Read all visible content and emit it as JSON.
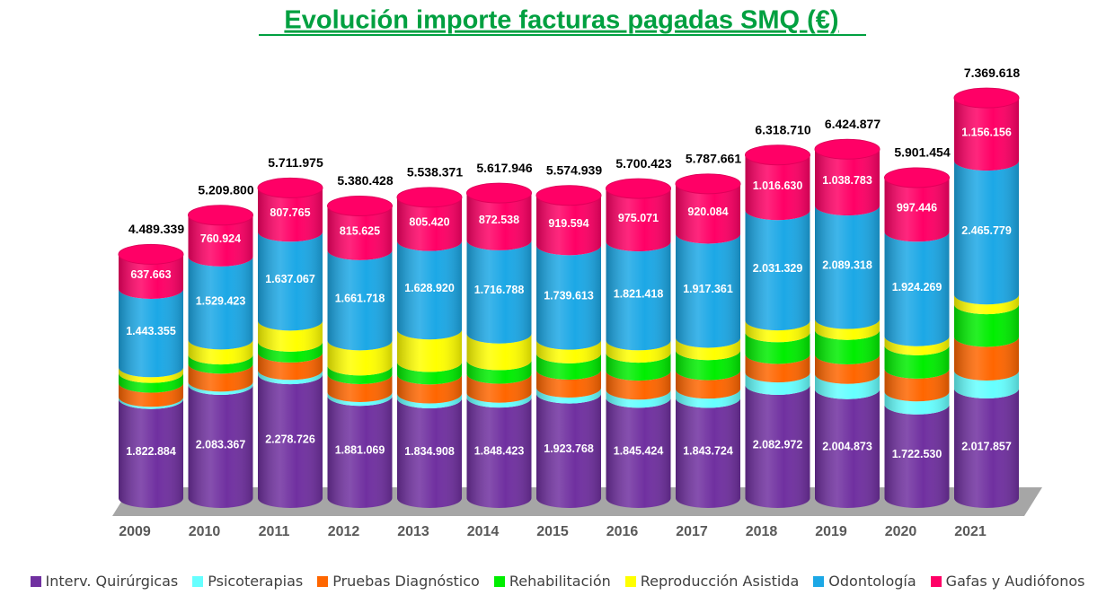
{
  "chart_data": {
    "type": "stacked-cylinder",
    "title": "Evolución importe facturas pagadas SMQ (€)",
    "categories": [
      "2009",
      "2010",
      "2011",
      "2012",
      "2013",
      "2014",
      "2015",
      "2016",
      "2017",
      "2018",
      "2019",
      "2020",
      "2021"
    ],
    "series": [
      {
        "name": "Interv. Quirúrgicas",
        "color": "#7030a0",
        "values": [
          1822884,
          2083367,
          2278726,
          1881069,
          1834908,
          1848423,
          1923768,
          1845424,
          1843724,
          2082972,
          2004873,
          1722530,
          2017857
        ],
        "value_labels": [
          "1.822.884",
          "2.083.367",
          "2.278.726",
          "1.881.069",
          "1.834.908",
          "1.848.423",
          "1.923.768",
          "1.845.424",
          "1.843.724",
          "2.082.972",
          "2.004.873",
          "1.722.530",
          "2.017.857"
        ]
      },
      {
        "name": "Psicoterapias",
        "color": "#66ffff",
        "values": [
          40000,
          60000,
          80000,
          70000,
          90000,
          90000,
          110000,
          150000,
          170000,
          230000,
          280000,
          240000,
          330000
        ]
      },
      {
        "name": "Pruebas Diagnóstico",
        "color": "#ff6600",
        "values": [
          260000,
          330000,
          320000,
          330000,
          350000,
          350000,
          330000,
          350000,
          340000,
          340000,
          360000,
          420000,
          620000
        ]
      },
      {
        "name": "Rehabilitación",
        "color": "#00ee00",
        "values": [
          180000,
          170000,
          200000,
          160000,
          230000,
          250000,
          300000,
          330000,
          370000,
          400000,
          450000,
          430000,
          600000
        ]
      },
      {
        "name": "Reproducción Asistida",
        "color": "#ffff00",
        "values": [
          105437,
          276086,
          388417,
          462016,
          599123,
          490197,
          251964,
          228510,
          226492,
          217779,
          201903,
          167209,
          179826
        ]
      },
      {
        "name": "Odontología",
        "color": "#1ca8e6",
        "values": [
          1443355,
          1529423,
          1637067,
          1661718,
          1628920,
          1716788,
          1739613,
          1821418,
          1917361,
          2031329,
          2089318,
          1924269,
          2465779
        ],
        "value_labels": [
          "1.443.355",
          "1.529.423",
          "1.637.067",
          "1.661.718",
          "1.628.920",
          "1.716.788",
          "1.739.613",
          "1.821.418",
          "1.917.361",
          "2.031.329",
          "2.089.318",
          "1.924.269",
          "2.465.779"
        ]
      },
      {
        "name": "Gafas y Audiófonos",
        "color": "#ff0066",
        "values": [
          637663,
          760924,
          807765,
          815625,
          805420,
          872538,
          919594,
          975071,
          920084,
          1016630,
          1038783,
          997446,
          1156156
        ],
        "value_labels": [
          "637.663",
          "760.924",
          "807.765",
          "815.625",
          "805.420",
          "872.538",
          "919.594",
          "975.071",
          "920.084",
          "1.016.630",
          "1.038.783",
          "997.446",
          "1.156.156"
        ]
      }
    ],
    "totals": {
      "values": [
        4489339,
        5209800,
        5711975,
        5380428,
        5538371,
        5617946,
        5574939,
        5700423,
        5787661,
        6318710,
        6424877,
        5901454,
        7369618
      ],
      "value_labels": [
        "4.489.339",
        "5.209.800",
        "5.711.975",
        "5.380.428",
        "5.538.371",
        "5.617.946",
        "5.574.939",
        "5.700.423",
        "5.787.661",
        "6.318.710",
        "6.424.877",
        "5.901.454",
        "7.369.618"
      ]
    }
  }
}
